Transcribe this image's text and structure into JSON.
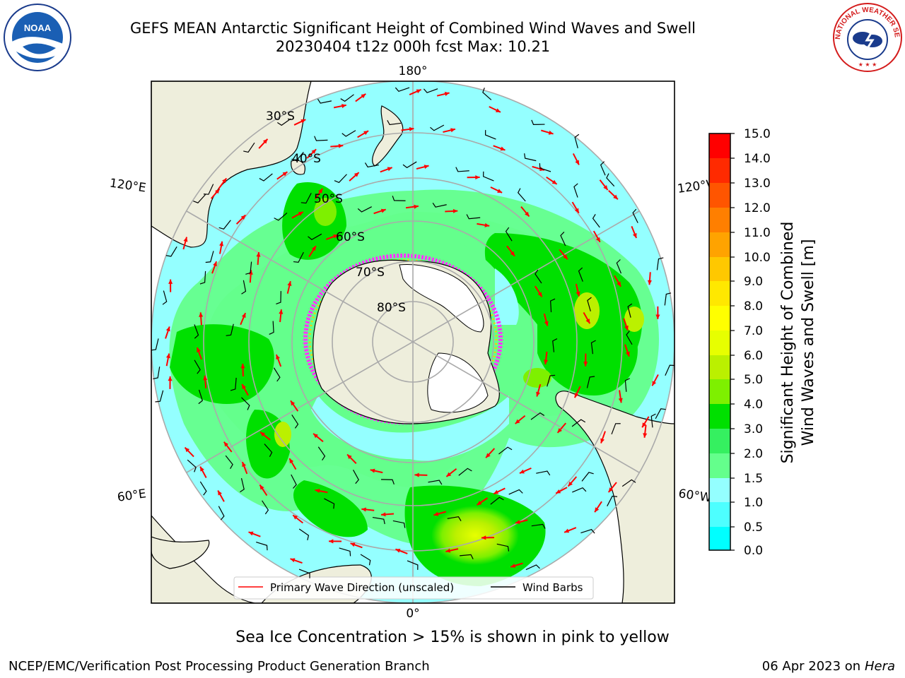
{
  "title_line1": "GEFS MEAN Antarctic Significant Height of Combined Wind Waves and Swell",
  "title_line2": "20230404 t12z 000h fcst   Max: 10.21",
  "logos": {
    "left": "NOAA",
    "right": "NATIONAL WEATHER SERVICE"
  },
  "map": {
    "projection": "south-polar-stereographic",
    "longitude_labels": {
      "top": "180°",
      "bottom": "0°",
      "upper_left": "120°E",
      "upper_right": "120°W",
      "lower_left": "60°E",
      "lower_right": "60°W"
    },
    "latitude_labels": [
      "30°S",
      "40°S",
      "50°S",
      "60°S",
      "70°S",
      "80°S"
    ],
    "legend": {
      "wave": "Primary Wave Direction (unscaled)",
      "barb": "Wind Barbs"
    }
  },
  "colorbar": {
    "label_line1": "Significant Height of Combined",
    "label_line2": "Wind Waves and Swell [m]",
    "ticks": [
      "15.0",
      "14.0",
      "13.0",
      "12.0",
      "11.0",
      "10.0",
      "9.0",
      "8.0",
      "7.0",
      "6.0",
      "5.0",
      "4.0",
      "3.0",
      "2.0",
      "1.5",
      "1.0",
      "0.5",
      "0.0"
    ],
    "colors_top_to_bottom": [
      "#ff0000",
      "#ff2a00",
      "#ff5500",
      "#ff7f00",
      "#ffa300",
      "#ffc800",
      "#ffe800",
      "#ffff00",
      "#e7ff00",
      "#bbf000",
      "#7ef000",
      "#00e000",
      "#35f060",
      "#64ff8c",
      "#94ffff",
      "#4dffff",
      "#00ffff",
      "#0080ff",
      "#0000ff"
    ]
  },
  "colors": {
    "land": "#eeeedc",
    "ocean_low": "#94ffff",
    "ocean_mid": "#64ff8c",
    "ocean_high": "#00e000",
    "ice": "#ff33ff",
    "wave_arrow": "#ff0000",
    "barb": "#000000"
  },
  "footer": {
    "note": "Sea Ice Concentration > 15% is shown in pink to yellow",
    "credit": "NCEP/EMC/Verification Post Processing Product Generation Branch",
    "date": "06 Apr 2023 on ",
    "machine": "Hera"
  }
}
